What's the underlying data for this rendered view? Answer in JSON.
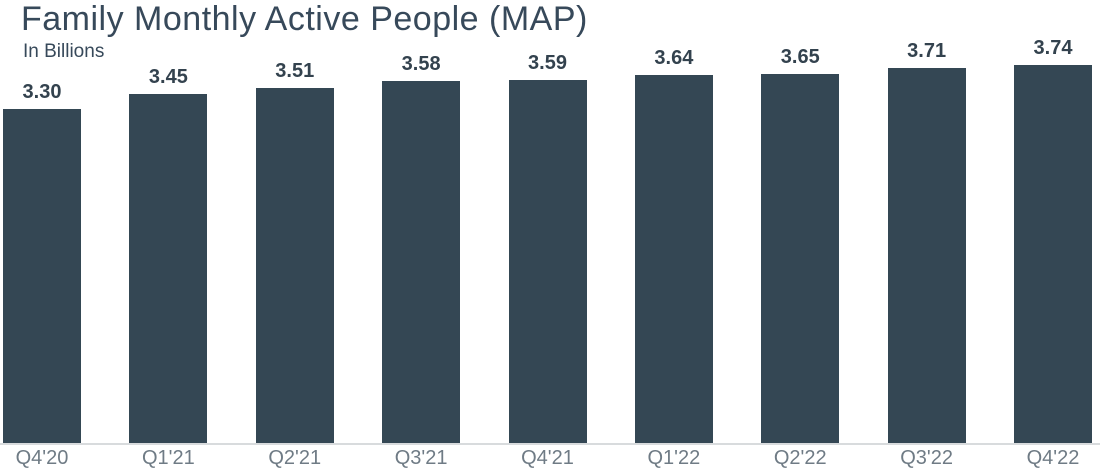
{
  "chart_data": {
    "type": "bar",
    "title": "Family Monthly Active People (MAP)",
    "subtitle": "In Billions",
    "categories": [
      "Q4'20",
      "Q1'21",
      "Q2'21",
      "Q3'21",
      "Q4'21",
      "Q1'22",
      "Q2'22",
      "Q3'22",
      "Q4'22"
    ],
    "values": [
      3.3,
      3.45,
      3.51,
      3.58,
      3.59,
      3.64,
      3.65,
      3.71,
      3.74
    ],
    "value_labels": [
      "3.30",
      "3.45",
      "3.51",
      "3.58",
      "3.59",
      "3.64",
      "3.65",
      "3.71",
      "3.74"
    ],
    "xlabel": "",
    "ylabel": "In Billions",
    "ylim": [
      0,
      3.74
    ],
    "grid": false,
    "legend": false,
    "colors": {
      "bar": "#344754",
      "title_text": "#37495A",
      "subtitle_text": "#37495A",
      "value_label_text": "#33424E",
      "axis_tick_text": "#6F7B85",
      "axis_line": "#D8DBDD",
      "background": "#FFFFFF"
    }
  }
}
